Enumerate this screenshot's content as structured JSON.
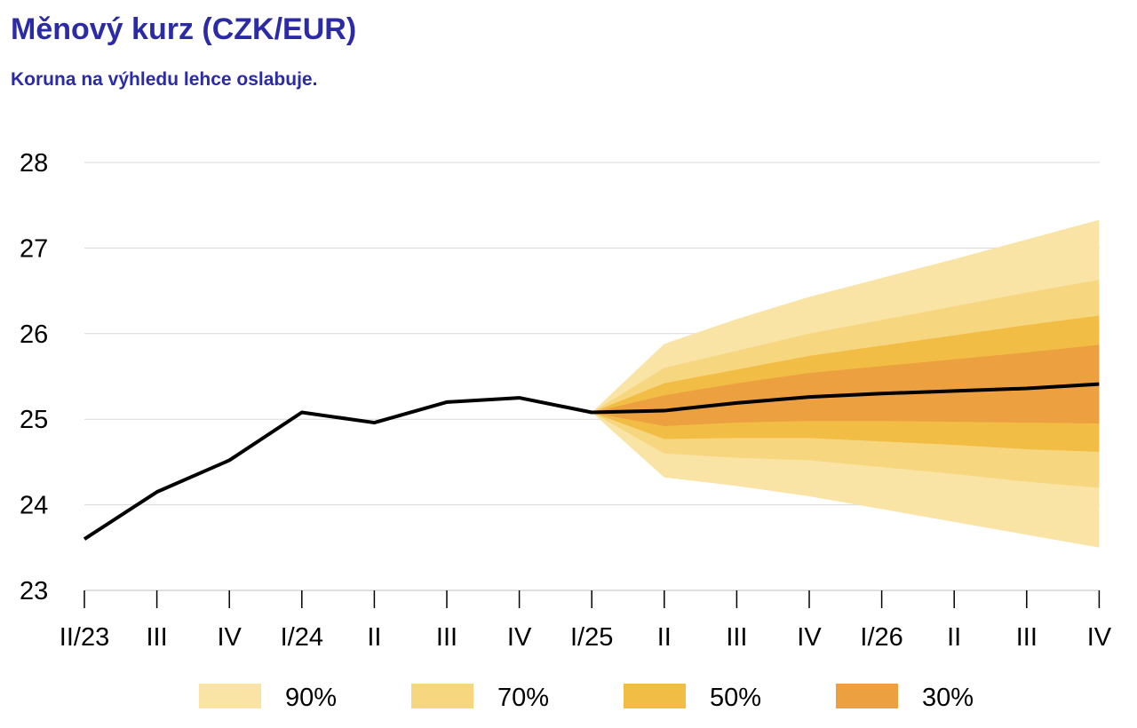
{
  "title": "Měnový kurz (CZK/EUR)",
  "subtitle": "Koruna na výhledu lehce oslabuje.",
  "colors": {
    "title": "#2b2ba6",
    "line": "#000000",
    "band90": "#f9e4a6",
    "band70": "#f7d680",
    "band50": "#f2bd45",
    "band30": "#eca040",
    "grid": "#d9d9d9"
  },
  "chart_data": {
    "type": "line",
    "title": "Měnový kurz (CZK/EUR)",
    "subtitle": "Koruna na výhledu lehce oslabuje.",
    "categories": [
      "II/23",
      "III",
      "IV",
      "I/24",
      "II",
      "III",
      "IV",
      "I/25",
      "II",
      "III",
      "IV",
      "I/26",
      "II",
      "III",
      "IV"
    ],
    "ylim": [
      23,
      28
    ],
    "yticks": [
      23,
      24,
      25,
      26,
      27,
      28
    ],
    "grid": true,
    "legend_position": "bottom",
    "series": [
      {
        "values": [
          23.6,
          24.15,
          24.52,
          25.08,
          24.96,
          25.2,
          25.25,
          25.08,
          25.1,
          25.19,
          25.26,
          25.3,
          25.33,
          25.36,
          25.41
        ]
      }
    ],
    "fan_start_index": 7,
    "fan_bands": [
      {
        "name": "90%",
        "color": "#f9e4a6",
        "lower": [
          25.08,
          24.32,
          24.22,
          24.1,
          23.95,
          23.8,
          23.65,
          23.5
        ],
        "upper": [
          25.08,
          25.88,
          26.17,
          26.43,
          26.65,
          26.87,
          27.1,
          27.33
        ]
      },
      {
        "name": "70%",
        "color": "#f7d680",
        "lower": [
          25.08,
          24.6,
          24.55,
          24.52,
          24.44,
          24.36,
          24.27,
          24.2
        ],
        "upper": [
          25.08,
          25.6,
          25.8,
          26.0,
          26.16,
          26.32,
          26.48,
          26.63
        ]
      },
      {
        "name": "50%",
        "color": "#f2bd45",
        "lower": [
          25.08,
          24.77,
          24.78,
          24.78,
          24.74,
          24.7,
          24.65,
          24.62
        ],
        "upper": [
          25.08,
          25.42,
          25.58,
          25.74,
          25.86,
          25.98,
          26.1,
          26.21
        ]
      },
      {
        "name": "30%",
        "color": "#eca040",
        "lower": [
          25.08,
          24.92,
          24.96,
          24.98,
          24.98,
          24.97,
          24.96,
          24.95
        ],
        "upper": [
          25.08,
          25.28,
          25.42,
          25.54,
          25.62,
          25.7,
          25.78,
          25.87
        ]
      }
    ],
    "legend": [
      "90%",
      "70%",
      "50%",
      "30%"
    ]
  }
}
